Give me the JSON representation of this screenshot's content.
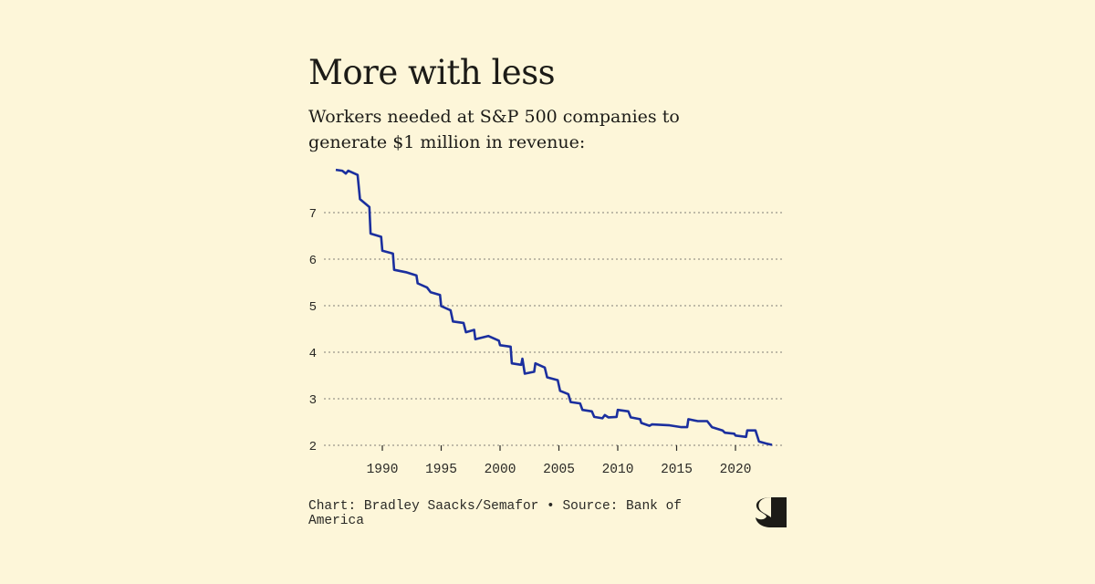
{
  "colors": {
    "background": "#fdf6d9",
    "line": "#1b2f9e",
    "grid": "#9a968a",
    "text": "#1c1b17"
  },
  "header": {
    "title": "More with less",
    "subtitle": "Workers needed at S&P 500 companies to generate $1 million in revenue:"
  },
  "footer": {
    "credit": "Chart: Bradley Saacks/Semafor • Source: Bank of America",
    "logo": "S"
  },
  "chart_data": {
    "type": "line",
    "title": "More with less",
    "subtitle": "Workers needed at S&P 500 companies to generate $1 million in revenue:",
    "xlabel": "",
    "ylabel": "",
    "xlim": [
      1985.8,
      2023.5
    ],
    "ylim": [
      2,
      7.9
    ],
    "grid": "horizontal dotted",
    "x_ticks": [
      "1990",
      "1995",
      "2000",
      "2005",
      "2010",
      "2015",
      "2020"
    ],
    "y_ticks": [
      "2",
      "3",
      "4",
      "5",
      "6",
      "7"
    ],
    "series": [
      {
        "points": [
          [
            1986.05,
            7.92
          ],
          [
            1986.6,
            7.9
          ],
          [
            1986.9,
            7.84
          ],
          [
            1987.1,
            7.9
          ],
          [
            1987.9,
            7.81
          ],
          [
            1988.1,
            7.29
          ],
          [
            1988.9,
            7.12
          ],
          [
            1989.0,
            6.55
          ],
          [
            1989.9,
            6.48
          ],
          [
            1990.0,
            6.18
          ],
          [
            1990.9,
            6.12
          ],
          [
            1991.0,
            5.77
          ],
          [
            1992.0,
            5.72
          ],
          [
            1992.9,
            5.65
          ],
          [
            1993.0,
            5.48
          ],
          [
            1993.8,
            5.39
          ],
          [
            1994.1,
            5.29
          ],
          [
            1994.9,
            5.23
          ],
          [
            1995.0,
            4.99
          ],
          [
            1995.8,
            4.9
          ],
          [
            1996.0,
            4.66
          ],
          [
            1996.9,
            4.63
          ],
          [
            1997.1,
            4.43
          ],
          [
            1997.8,
            4.48
          ],
          [
            1997.9,
            4.28
          ],
          [
            1999.0,
            4.35
          ],
          [
            1999.9,
            4.25
          ],
          [
            2000.0,
            4.15
          ],
          [
            2000.9,
            4.12
          ],
          [
            2001.0,
            3.76
          ],
          [
            2001.8,
            3.73
          ],
          [
            2001.9,
            3.86
          ],
          [
            2002.1,
            3.54
          ],
          [
            2002.9,
            3.58
          ],
          [
            2003.0,
            3.76
          ],
          [
            2003.8,
            3.67
          ],
          [
            2004.0,
            3.46
          ],
          [
            2004.9,
            3.4
          ],
          [
            2005.1,
            3.17
          ],
          [
            2005.8,
            3.1
          ],
          [
            2006.0,
            2.93
          ],
          [
            2006.8,
            2.9
          ],
          [
            2007.0,
            2.76
          ],
          [
            2007.8,
            2.73
          ],
          [
            2008.0,
            2.61
          ],
          [
            2008.7,
            2.58
          ],
          [
            2008.9,
            2.65
          ],
          [
            2009.2,
            2.6
          ],
          [
            2009.9,
            2.61
          ],
          [
            2010.0,
            2.76
          ],
          [
            2010.9,
            2.73
          ],
          [
            2011.1,
            2.6
          ],
          [
            2011.9,
            2.56
          ],
          [
            2012.0,
            2.48
          ],
          [
            2012.7,
            2.42
          ],
          [
            2012.9,
            2.45
          ],
          [
            2014.4,
            2.43
          ],
          [
            2015.4,
            2.39
          ],
          [
            2015.9,
            2.39
          ],
          [
            2016.0,
            2.56
          ],
          [
            2016.8,
            2.52
          ],
          [
            2017.6,
            2.52
          ],
          [
            2018.0,
            2.39
          ],
          [
            2018.9,
            2.32
          ],
          [
            2019.1,
            2.27
          ],
          [
            2019.9,
            2.25
          ],
          [
            2020.0,
            2.21
          ],
          [
            2020.9,
            2.18
          ],
          [
            2021.0,
            2.32
          ],
          [
            2021.7,
            2.32
          ],
          [
            2022.0,
            2.08
          ],
          [
            2022.6,
            2.04
          ],
          [
            2023.1,
            2.01
          ]
        ]
      }
    ]
  }
}
